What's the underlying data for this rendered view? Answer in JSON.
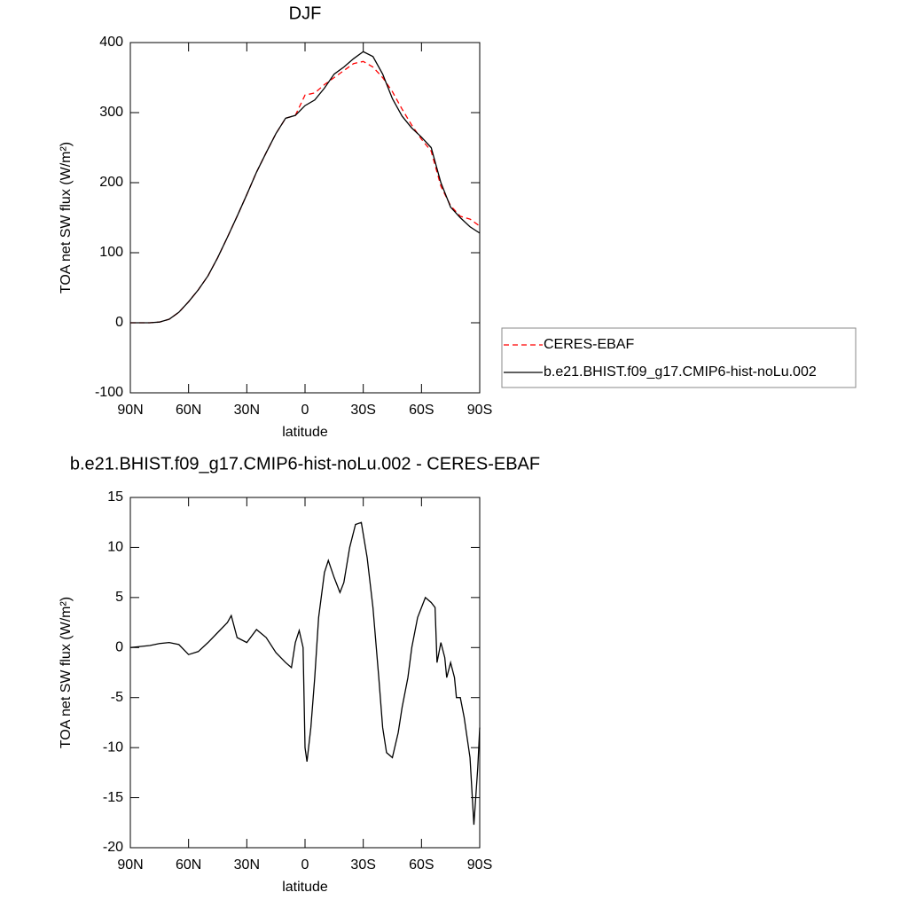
{
  "chart_data": [
    {
      "type": "line",
      "title": "DJF",
      "xlabel": "latitude",
      "ylabel": "TOA net SW flux (W/m²)",
      "x": [
        90,
        85,
        80,
        75,
        70,
        65,
        60,
        55,
        50,
        45,
        40,
        35,
        30,
        25,
        20,
        15,
        10,
        5,
        0,
        -5,
        -10,
        -15,
        -20,
        -25,
        -30,
        -35,
        -40,
        -45,
        -50,
        -55,
        -60,
        -65,
        -70,
        -75,
        -80,
        -85,
        -90
      ],
      "series": [
        {
          "name": "CERES-EBAF",
          "color": "#ff0000",
          "dashed": true,
          "values": [
            0,
            0,
            0,
            1,
            5,
            15,
            30,
            47,
            67,
            93,
            122,
            152,
            183,
            215,
            243,
            270,
            292,
            296,
            325,
            328,
            340,
            350,
            360,
            370,
            373,
            365,
            350,
            330,
            305,
            282,
            262,
            245,
            195,
            167,
            152,
            148,
            138
          ]
        },
        {
          "name": "b.e21.BHIST.f09_g17.CMIP6-hist-noLu.002",
          "color": "#000000",
          "dashed": false,
          "values": [
            0,
            0,
            0,
            1,
            5,
            15,
            30,
            47,
            67,
            93,
            122,
            152,
            183,
            215,
            243,
            270,
            292,
            296,
            310,
            318,
            335,
            355,
            365,
            377,
            387,
            380,
            355,
            320,
            295,
            278,
            265,
            250,
            200,
            165,
            150,
            137,
            128
          ]
        }
      ],
      "xlim": [
        90,
        -90
      ],
      "xticks": [
        {
          "value": 90,
          "label": "90N"
        },
        {
          "value": 60,
          "label": "60N"
        },
        {
          "value": 30,
          "label": "30N"
        },
        0,
        {
          "value": -30,
          "label": "30S"
        },
        {
          "value": -60,
          "label": "60S"
        },
        {
          "value": -90,
          "label": "90S"
        }
      ],
      "ylim": [
        -100,
        400
      ],
      "yticks": [
        -100,
        0,
        100,
        200,
        300,
        400
      ],
      "legend": "right"
    },
    {
      "type": "line",
      "title": "b.e21.BHIST.f09_g17.CMIP6-hist-noLu.002 - CERES-EBAF",
      "xlabel": "latitude",
      "ylabel": "TOA net SW flux (W/m²)",
      "x": [
        90,
        85,
        80,
        75,
        70,
        65,
        60,
        55,
        50,
        45,
        40,
        38,
        35,
        30,
        25,
        20,
        15,
        10,
        7,
        5,
        3,
        1,
        0,
        -1,
        -3,
        -5,
        -7,
        -10,
        -12,
        -15,
        -18,
        -20,
        -23,
        -26,
        -29,
        -32,
        -35,
        -38,
        -40,
        -42,
        -45,
        -48,
        -50,
        -53,
        -55,
        -58,
        -60,
        -62,
        -65,
        -67,
        -68,
        -70,
        -72,
        -73,
        -75,
        -77,
        -78,
        -80,
        -82,
        -85,
        -87,
        -89,
        -90
      ],
      "series": [
        {
          "color": "#000000",
          "dashed": false,
          "values": [
            0,
            0.1,
            0.2,
            0.4,
            0.5,
            0.3,
            -0.7,
            -0.4,
            0.5,
            1.5,
            2.5,
            3.2,
            1,
            0.5,
            1.8,
            1,
            -0.5,
            -1.5,
            -2,
            0.5,
            1.7,
            0,
            -10,
            -11.4,
            -8,
            -3,
            3,
            7.5,
            8.7,
            7,
            5.5,
            6.5,
            10,
            12.3,
            12.5,
            9,
            4,
            -3,
            -8,
            -10.5,
            -11,
            -8.5,
            -6,
            -3,
            0,
            3,
            4,
            5,
            4.5,
            4,
            -1.5,
            0.5,
            -1,
            -3,
            -1.5,
            -3,
            -5,
            -5,
            -7,
            -11,
            -17.7,
            -12,
            -8
          ]
        }
      ],
      "xlim": [
        90,
        -90
      ],
      "xticks": [
        {
          "value": 90,
          "label": "90N"
        },
        {
          "value": 60,
          "label": "60N"
        },
        {
          "value": 30,
          "label": "30N"
        },
        0,
        {
          "value": -30,
          "label": "30S"
        },
        {
          "value": -60,
          "label": "60S"
        },
        {
          "value": -90,
          "label": "90S"
        }
      ],
      "ylim": [
        -20,
        15
      ],
      "yticks": [
        -20,
        -15,
        -10,
        -5,
        0,
        5,
        10,
        15
      ]
    }
  ]
}
